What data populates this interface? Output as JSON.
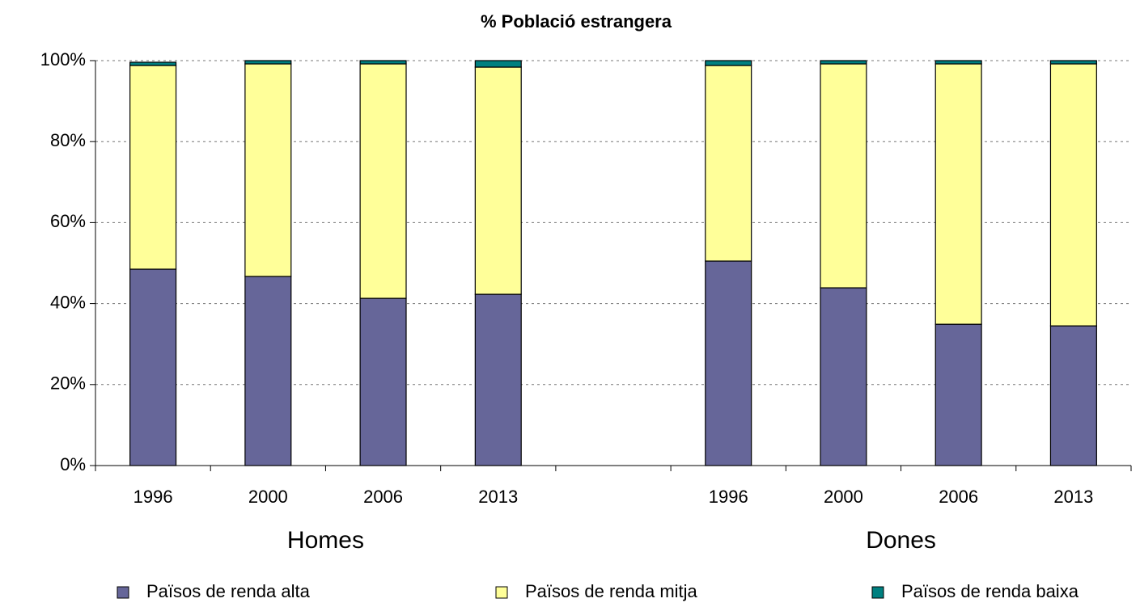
{
  "chart_data": {
    "type": "stacked-bar",
    "title": "% Població estrangera",
    "categories": [
      "1996",
      "2000",
      "2006",
      "2013",
      null,
      "1996",
      "2000",
      "2006",
      "2013"
    ],
    "group_labels": [
      "Homes",
      "Dones"
    ],
    "series": [
      {
        "name": "Països de renda alta",
        "color": "#666699",
        "values": [
          48.5,
          46.7,
          41.3,
          42.3,
          null,
          50.5,
          43.9,
          34.9,
          34.5
        ]
      },
      {
        "name": "Països de renda mitja",
        "color": "#ffff99",
        "values": [
          50.3,
          52.5,
          57.9,
          56.1,
          null,
          48.3,
          55.3,
          64.3,
          64.7
        ]
      },
      {
        "name": "Països de renda baixa",
        "color": "#008080",
        "values": [
          0.8,
          0.8,
          0.8,
          1.6,
          null,
          1.2,
          0.8,
          0.8,
          0.8
        ]
      }
    ],
    "ylim": [
      0,
      100
    ],
    "yticks": [
      {
        "value": 0,
        "label": "0%"
      },
      {
        "value": 20,
        "label": "20%"
      },
      {
        "value": 40,
        "label": "40%"
      },
      {
        "value": 60,
        "label": "60%"
      },
      {
        "value": 80,
        "label": "80%"
      },
      {
        "value": 100,
        "label": "100%"
      }
    ],
    "grid": true,
    "legend": "bottom"
  }
}
